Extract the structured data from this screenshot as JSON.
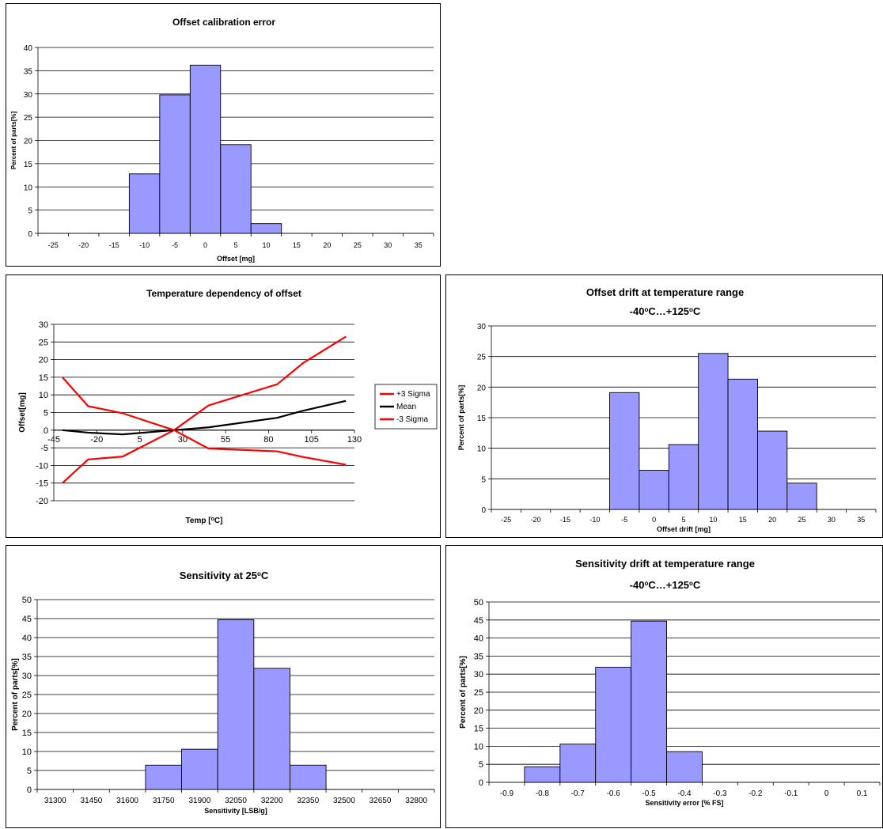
{
  "chart_data": [
    {
      "type": "bar",
      "title": "Offset calibration error",
      "xlabel": "Offset  [mg]",
      "ylabel": "Percent of parts[%]",
      "x_ticks": [
        "-25",
        "-20",
        "-15",
        "-10",
        "-5",
        "0",
        "5",
        "10",
        "15",
        "20",
        "25",
        "30",
        "35"
      ],
      "y_ticks": [
        "0",
        "5",
        "10",
        "15",
        "20",
        "25",
        "30",
        "35",
        "40"
      ],
      "ylim": [
        0,
        40
      ],
      "values": [
        0,
        0,
        0,
        12.8,
        29.8,
        36.2,
        19.1,
        2.1,
        0,
        0,
        0,
        0,
        0
      ],
      "grid": true,
      "bar_color": "#9999ff"
    },
    {
      "type": "line",
      "title": "Temperature dependency of offset",
      "xlabel": "Temp [°C]",
      "ylabel": "Offset[mg]",
      "x_ticks": [
        "-45",
        "-20",
        "5",
        "30",
        "55",
        "80",
        "105",
        "130"
      ],
      "y_ticks": [
        "-20",
        "-15",
        "-10",
        "-5",
        "0",
        "5",
        "10",
        "15",
        "20",
        "25",
        "30"
      ],
      "ylim": [
        -20,
        30
      ],
      "xlim": [
        -45,
        130
      ],
      "x": [
        -40,
        -25,
        -5,
        25,
        45,
        85,
        100,
        125
      ],
      "series": [
        {
          "name": "+3 Sigma",
          "color": "#ff0000",
          "values": [
            -15,
            -8.3,
            -7.5,
            0,
            7,
            13,
            19,
            26.5
          ]
        },
        {
          "name": "Mean",
          "color": "#000000",
          "values": [
            0,
            -0.7,
            -1.2,
            0,
            0.8,
            3.5,
            5.5,
            8.3
          ]
        },
        {
          "name": "-3 Sigma",
          "color": "#ff0000",
          "values": [
            15,
            6.8,
            4.8,
            0,
            -5.2,
            -6,
            -7.6,
            -9.8
          ]
        }
      ],
      "legend": "right",
      "grid": true
    },
    {
      "type": "bar",
      "title": "Offset drift at temperature range",
      "subtitle": "-40°C…+125°C",
      "xlabel": "Offset drift [mg]",
      "ylabel": "Percent of parts[%]",
      "x_ticks": [
        "-25",
        "-20",
        "-15",
        "-10",
        "-5",
        "0",
        "5",
        "10",
        "15",
        "20",
        "25",
        "30",
        "35"
      ],
      "y_ticks": [
        "0",
        "5",
        "10",
        "15",
        "20",
        "25",
        "30"
      ],
      "ylim": [
        0,
        30
      ],
      "values": [
        0,
        0,
        0,
        0,
        19.1,
        6.4,
        10.6,
        25.5,
        21.3,
        12.8,
        4.3,
        0,
        0
      ],
      "grid": true,
      "bar_color": "#9999ff"
    },
    {
      "type": "bar",
      "title": "Sensitivity at 25°C",
      "xlabel": "Sensitivity  [LSB/g]",
      "ylabel": "Percent of parts[%]",
      "x_ticks": [
        "31300",
        "31450",
        "31600",
        "31750",
        "31900",
        "32050",
        "32200",
        "32350",
        "32500",
        "32650",
        "32800"
      ],
      "y_ticks": [
        "0",
        "5",
        "10",
        "15",
        "20",
        "25",
        "30",
        "35",
        "40",
        "45",
        "50"
      ],
      "ylim": [
        0,
        50
      ],
      "values": [
        0,
        0,
        0,
        6.4,
        10.6,
        44.7,
        31.9,
        6.4,
        0,
        0,
        0
      ],
      "grid": true,
      "bar_color": "#9999ff"
    },
    {
      "type": "bar",
      "title": "Sensitivity drift at temperature range",
      "subtitle": "-40°C…+125°C",
      "xlabel": "Sensitivity error [% FS]",
      "ylabel": "Percent of parts[%]",
      "x_ticks": [
        "-0.9",
        "-0.8",
        "-0.7",
        "-0.6",
        "-0.5",
        "-0.4",
        "-0.3",
        "-0.2",
        "-0.1",
        "0",
        "0.1"
      ],
      "y_ticks": [
        "0",
        "5",
        "10",
        "15",
        "20",
        "25",
        "30",
        "35",
        "40",
        "45",
        "50"
      ],
      "ylim": [
        0,
        50
      ],
      "values": [
        0,
        4.3,
        10.6,
        31.9,
        44.7,
        8.5,
        0,
        0,
        0,
        0,
        0
      ],
      "grid": true,
      "bar_color": "#9999ff"
    }
  ]
}
